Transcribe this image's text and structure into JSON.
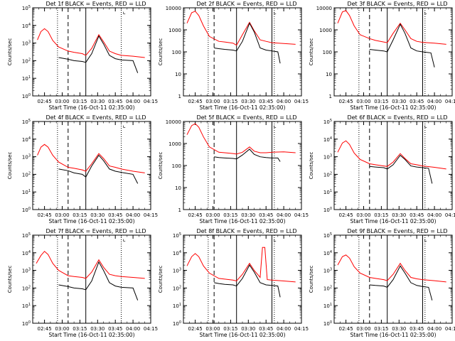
{
  "figure": {
    "xlabel": "Start Time (16-Oct-11 02:35:00)",
    "ylabel": "Counts/sec",
    "x_ticks": [
      "02:45",
      "03:00",
      "03:15",
      "03:30",
      "03:45",
      "04:00",
      "04:15"
    ],
    "x_range": [
      "02:35",
      "04:15"
    ],
    "marker_glyph": "⌞"
  },
  "chart_data": [
    {
      "type": "line",
      "detector": "Det 1f",
      "title": "Det 1f BLACK = Events, RED = LLD",
      "yscale": "log",
      "ylim": [
        1,
        100000
      ],
      "y_ticks": [
        "10^0",
        "10^1",
        "10^2",
        "10^3",
        "10^4",
        "10^5"
      ],
      "vlines": [
        {
          "t": "02:56",
          "style": "dotted"
        },
        {
          "t": "03:05",
          "style": "dashed"
        },
        {
          "t": "03:20",
          "style": "solid"
        },
        {
          "t": "03:50",
          "style": "dotted"
        }
      ],
      "series": [
        {
          "name": "LLD",
          "color": "#ff0000",
          "x": [
            "02:39",
            "02:42",
            "02:45",
            "02:48",
            "02:52",
            "02:57",
            "03:05",
            "03:10",
            "03:17",
            "03:20",
            "03:25",
            "03:31",
            "03:35",
            "03:40",
            "03:45",
            "03:50",
            "04:00",
            "04:10"
          ],
          "y": [
            1500,
            4500,
            6500,
            4500,
            1400,
            600,
            350,
            300,
            250,
            200,
            500,
            3000,
            1200,
            350,
            250,
            200,
            180,
            150
          ]
        },
        {
          "name": "Events",
          "color": "#000000",
          "x": [
            "02:57",
            "03:05",
            "03:10",
            "03:17",
            "03:20",
            "03:25",
            "03:31",
            "03:35",
            "03:40",
            "03:45",
            "03:50",
            "04:00",
            "04:04"
          ],
          "y": [
            150,
            120,
            100,
            90,
            80,
            250,
            2500,
            900,
            200,
            130,
            110,
            100,
            20
          ]
        }
      ]
    },
    {
      "type": "line",
      "detector": "Det 2f",
      "title": "Det 2f BLACK = Events, RED = LLD",
      "yscale": "log",
      "ylim": [
        1,
        10000
      ],
      "y_ticks": [
        "1",
        "10",
        "100",
        "1000",
        "10000"
      ],
      "vlines": [
        {
          "t": "02:56",
          "style": "dotted"
        },
        {
          "t": "03:01",
          "style": "dashed"
        },
        {
          "t": "03:20",
          "style": "solid"
        },
        {
          "t": "03:50",
          "style": "solid"
        },
        {
          "t": "03:52",
          "style": "dotted"
        }
      ],
      "series": [
        {
          "name": "LLD",
          "color": "#ff0000",
          "x": [
            "02:38",
            "02:42",
            "02:45",
            "02:48",
            "02:52",
            "02:57",
            "03:05",
            "03:10",
            "03:17",
            "03:20",
            "03:25",
            "03:31",
            "03:35",
            "03:40",
            "03:45",
            "03:50",
            "04:00",
            "04:10"
          ],
          "y": [
            2000,
            6000,
            7000,
            4500,
            1500,
            500,
            300,
            280,
            250,
            200,
            600,
            2200,
            900,
            350,
            300,
            260,
            240,
            220
          ]
        },
        {
          "name": "Events",
          "color": "#000000",
          "x": [
            "03:01",
            "03:05",
            "03:10",
            "03:17",
            "03:20",
            "03:25",
            "03:31",
            "03:35",
            "03:40",
            "03:45",
            "03:50",
            "03:55",
            "03:57"
          ],
          "y": [
            150,
            140,
            130,
            120,
            110,
            300,
            2000,
            800,
            150,
            120,
            110,
            100,
            30
          ]
        }
      ]
    },
    {
      "type": "line",
      "detector": "Det 3f",
      "title": "Det 3f BLACK = Events, RED = LLD",
      "yscale": "log",
      "ylim": [
        1,
        10000
      ],
      "y_ticks": [
        "1",
        "10",
        "100",
        "1000",
        "10000"
      ],
      "vlines": [
        {
          "t": "02:56",
          "style": "dotted"
        },
        {
          "t": "03:05",
          "style": "dashed"
        },
        {
          "t": "03:20",
          "style": "solid"
        },
        {
          "t": "03:50",
          "style": "solid"
        },
        {
          "t": "03:52",
          "style": "dotted"
        }
      ],
      "series": [
        {
          "name": "LLD",
          "color": "#ff0000",
          "x": [
            "02:38",
            "02:42",
            "02:45",
            "02:48",
            "02:52",
            "02:57",
            "03:05",
            "03:10",
            "03:17",
            "03:20",
            "03:25",
            "03:31",
            "03:35",
            "03:40",
            "03:45",
            "03:50",
            "04:00",
            "04:10"
          ],
          "y": [
            2000,
            6500,
            7500,
            4500,
            1500,
            600,
            400,
            330,
            280,
            260,
            700,
            2000,
            1000,
            400,
            300,
            270,
            250,
            220
          ]
        },
        {
          "name": "Events",
          "color": "#000000",
          "x": [
            "03:05",
            "03:10",
            "03:17",
            "03:20",
            "03:25",
            "03:31",
            "03:35",
            "03:40",
            "03:45",
            "03:50",
            "03:57",
            "04:00"
          ],
          "y": [
            130,
            120,
            110,
            100,
            350,
            1800,
            700,
            150,
            110,
            100,
            90,
            20
          ]
        }
      ]
    },
    {
      "type": "line",
      "detector": "Det 4f",
      "title": "Det 4f BLACK = Events, RED = LLD",
      "yscale": "log",
      "ylim": [
        1,
        100000
      ],
      "y_ticks": [
        "10^0",
        "10^1",
        "10^2",
        "10^3",
        "10^4",
        "10^5"
      ],
      "vlines": [
        {
          "t": "02:56",
          "style": "dotted"
        },
        {
          "t": "03:05",
          "style": "dashed"
        },
        {
          "t": "03:20",
          "style": "solid"
        },
        {
          "t": "03:50",
          "style": "dotted"
        }
      ],
      "series": [
        {
          "name": "LLD",
          "color": "#ff0000",
          "x": [
            "02:39",
            "02:42",
            "02:45",
            "02:48",
            "02:52",
            "02:57",
            "03:05",
            "03:10",
            "03:17",
            "03:20",
            "03:25",
            "03:31",
            "03:35",
            "03:40",
            "03:45",
            "03:50",
            "04:00",
            "04:10"
          ],
          "y": [
            1200,
            3500,
            5000,
            3500,
            1200,
            500,
            250,
            220,
            180,
            150,
            400,
            1500,
            800,
            300,
            250,
            200,
            150,
            120
          ]
        },
        {
          "name": "Events",
          "color": "#000000",
          "x": [
            "02:57",
            "03:05",
            "03:10",
            "03:17",
            "03:20",
            "03:25",
            "03:31",
            "03:35",
            "03:40",
            "03:45",
            "03:50",
            "04:00",
            "04:04"
          ],
          "y": [
            200,
            160,
            120,
            100,
            70,
            300,
            1200,
            600,
            200,
            150,
            130,
            100,
            30
          ]
        }
      ]
    },
    {
      "type": "line",
      "detector": "Det 5f",
      "title": "Det 5f BLACK = Events, RED = LLD",
      "yscale": "log",
      "ylim": [
        1,
        10000
      ],
      "y_ticks": [
        "1",
        "10",
        "100",
        "1000",
        "10000"
      ],
      "vlines": [
        {
          "t": "02:56",
          "style": "dotted"
        },
        {
          "t": "03:01",
          "style": "dashed"
        },
        {
          "t": "03:20",
          "style": "solid"
        },
        {
          "t": "03:50",
          "style": "solid"
        },
        {
          "t": "03:52",
          "style": "dotted"
        }
      ],
      "series": [
        {
          "name": "LLD",
          "color": "#ff0000",
          "x": [
            "02:38",
            "02:42",
            "02:45",
            "02:48",
            "02:52",
            "02:57",
            "03:05",
            "03:10",
            "03:17",
            "03:20",
            "03:25",
            "03:31",
            "03:35",
            "03:40",
            "03:45",
            "03:50",
            "04:00",
            "04:10"
          ],
          "y": [
            2500,
            6500,
            8000,
            5500,
            2000,
            700,
            400,
            380,
            350,
            330,
            400,
            700,
            450,
            380,
            380,
            400,
            420,
            380
          ]
        },
        {
          "name": "Events",
          "color": "#000000",
          "x": [
            "03:01",
            "03:05",
            "03:10",
            "03:17",
            "03:20",
            "03:25",
            "03:31",
            "03:35",
            "03:40",
            "03:45",
            "03:50",
            "03:55",
            "03:57"
          ],
          "y": [
            250,
            230,
            220,
            210,
            200,
            300,
            550,
            320,
            250,
            230,
            220,
            220,
            150
          ]
        }
      ]
    },
    {
      "type": "line",
      "detector": "Det 6f",
      "title": "Det 6f BLACK = Events, RED = LLD",
      "yscale": "log",
      "ylim": [
        1,
        100000
      ],
      "y_ticks": [
        "10^0",
        "10^1",
        "10^2",
        "10^3",
        "10^4",
        "10^5"
      ],
      "vlines": [
        {
          "t": "02:56",
          "style": "dotted"
        },
        {
          "t": "03:05",
          "style": "dashed"
        },
        {
          "t": "03:20",
          "style": "solid"
        },
        {
          "t": "03:50",
          "style": "solid"
        },
        {
          "t": "03:52",
          "style": "dotted"
        }
      ],
      "series": [
        {
          "name": "LLD",
          "color": "#ff0000",
          "x": [
            "02:38",
            "02:42",
            "02:45",
            "02:48",
            "02:52",
            "02:57",
            "03:05",
            "03:10",
            "03:17",
            "03:20",
            "03:25",
            "03:31",
            "03:35",
            "03:40",
            "03:45",
            "03:50",
            "04:00",
            "04:10"
          ],
          "y": [
            1800,
            6000,
            8000,
            5000,
            1600,
            700,
            400,
            350,
            300,
            280,
            500,
            1500,
            800,
            400,
            350,
            300,
            250,
            200
          ]
        },
        {
          "name": "Events",
          "color": "#000000",
          "x": [
            "03:05",
            "03:10",
            "03:17",
            "03:20",
            "03:25",
            "03:31",
            "03:35",
            "03:40",
            "03:45",
            "03:50",
            "03:55",
            "03:58"
          ],
          "y": [
            280,
            260,
            240,
            200,
            350,
            1200,
            700,
            300,
            260,
            240,
            220,
            30
          ]
        }
      ]
    },
    {
      "type": "line",
      "detector": "Det 7f",
      "title": "Det 7f BLACK = Events, RED = LLD",
      "yscale": "log",
      "ylim": [
        1,
        100000
      ],
      "y_ticks": [
        "10^0",
        "10^1",
        "10^2",
        "10^3",
        "10^4",
        "10^5"
      ],
      "vlines": [
        {
          "t": "02:56",
          "style": "dotted"
        },
        {
          "t": "03:05",
          "style": "dashed"
        },
        {
          "t": "03:20",
          "style": "solid"
        },
        {
          "t": "03:50",
          "style": "dotted"
        }
      ],
      "series": [
        {
          "name": "LLD",
          "color": "#ff0000",
          "x": [
            "02:38",
            "02:42",
            "02:45",
            "02:48",
            "02:52",
            "02:57",
            "03:05",
            "03:10",
            "03:17",
            "03:20",
            "03:25",
            "03:31",
            "03:35",
            "03:40",
            "03:45",
            "03:50",
            "04:00",
            "04:10"
          ],
          "y": [
            2500,
            7000,
            12000,
            8000,
            2500,
            1000,
            500,
            450,
            400,
            350,
            800,
            4000,
            1500,
            600,
            500,
            450,
            400,
            350
          ]
        },
        {
          "name": "Events",
          "color": "#000000",
          "x": [
            "02:57",
            "03:05",
            "03:10",
            "03:17",
            "03:20",
            "03:25",
            "03:31",
            "03:35",
            "03:40",
            "03:45",
            "03:50",
            "04:00",
            "04:04"
          ],
          "y": [
            150,
            120,
            100,
            90,
            80,
            250,
            3000,
            1000,
            200,
            130,
            110,
            100,
            20
          ]
        }
      ]
    },
    {
      "type": "line",
      "detector": "Det 8f",
      "title": "Det 8f BLACK = Events, RED = LLD",
      "yscale": "log",
      "ylim": [
        1,
        100000
      ],
      "y_ticks": [
        "10^0",
        "10^1",
        "10^2",
        "10^3",
        "10^4",
        "10^5"
      ],
      "vlines": [
        {
          "t": "02:56",
          "style": "dotted"
        },
        {
          "t": "03:01",
          "style": "dashed"
        },
        {
          "t": "03:20",
          "style": "solid"
        },
        {
          "t": "03:50",
          "style": "solid"
        },
        {
          "t": "03:52",
          "style": "dotted"
        }
      ],
      "series": [
        {
          "name": "LLD",
          "color": "#ff0000",
          "x": [
            "02:38",
            "02:42",
            "02:45",
            "02:48",
            "02:52",
            "02:57",
            "03:05",
            "03:10",
            "03:17",
            "03:20",
            "03:25",
            "03:31",
            "03:35",
            "03:40",
            "03:42",
            "03:44",
            "03:46",
            "03:50",
            "04:00",
            "04:10"
          ],
          "y": [
            1800,
            6000,
            9000,
            6000,
            1800,
            700,
            350,
            320,
            280,
            250,
            600,
            2500,
            1000,
            400,
            20000,
            20000,
            300,
            280,
            250,
            220
          ]
        },
        {
          "name": "Events",
          "color": "#000000",
          "x": [
            "03:01",
            "03:05",
            "03:10",
            "03:17",
            "03:20",
            "03:25",
            "03:31",
            "03:35",
            "03:40",
            "03:45",
            "03:50",
            "03:55",
            "03:57"
          ],
          "y": [
            200,
            180,
            160,
            150,
            130,
            350,
            2000,
            800,
            200,
            150,
            140,
            130,
            30
          ]
        }
      ]
    },
    {
      "type": "line",
      "detector": "Det 9f",
      "title": "Det 9f BLACK = Events, RED = LLD",
      "yscale": "log",
      "ylim": [
        1,
        100000
      ],
      "y_ticks": [
        "10^0",
        "10^1",
        "10^2",
        "10^3",
        "10^4",
        "10^5"
      ],
      "vlines": [
        {
          "t": "02:56",
          "style": "dotted"
        },
        {
          "t": "03:05",
          "style": "dashed"
        },
        {
          "t": "03:20",
          "style": "solid"
        },
        {
          "t": "03:50",
          "style": "solid"
        },
        {
          "t": "03:52",
          "style": "dotted"
        }
      ],
      "series": [
        {
          "name": "LLD",
          "color": "#ff0000",
          "x": [
            "02:38",
            "02:42",
            "02:45",
            "02:48",
            "02:52",
            "02:57",
            "03:05",
            "03:10",
            "03:17",
            "03:20",
            "03:25",
            "03:31",
            "03:35",
            "03:40",
            "03:45",
            "03:50",
            "04:00",
            "04:10"
          ],
          "y": [
            2000,
            6000,
            7500,
            5000,
            1600,
            700,
            400,
            350,
            300,
            260,
            600,
            2500,
            1000,
            400,
            330,
            300,
            260,
            220
          ]
        },
        {
          "name": "Events",
          "color": "#000000",
          "x": [
            "03:05",
            "03:10",
            "03:17",
            "03:20",
            "03:25",
            "03:31",
            "03:35",
            "03:40",
            "03:45",
            "03:50",
            "03:55",
            "03:58"
          ],
          "y": [
            150,
            140,
            130,
            110,
            300,
            1800,
            700,
            200,
            140,
            120,
            110,
            20
          ]
        }
      ]
    }
  ]
}
